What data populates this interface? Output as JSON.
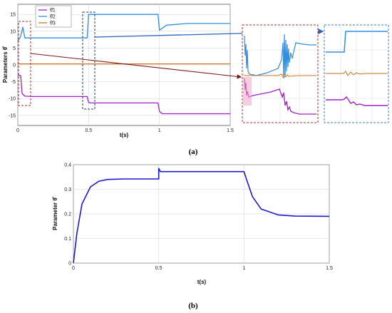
{
  "chart_data": [
    {
      "type": "line",
      "panel_caption": "(a)",
      "xlabel": "t(s)",
      "ylabel": "Parameters θ̂",
      "xlim": [
        0,
        1.5
      ],
      "ylim": [
        -18,
        18
      ],
      "xticks": [
        "0",
        "0.5",
        "1",
        "1.5"
      ],
      "yticks": [
        "-15",
        "-10",
        "-5",
        "0",
        "5",
        "10",
        "15"
      ],
      "grid": true,
      "legend_position": "top-left",
      "series": [
        {
          "name": "θ̂1",
          "color": "#a020c8",
          "x": [
            0,
            0.02,
            0.03,
            0.05,
            0.1,
            0.49,
            0.5,
            0.52,
            0.99,
            1.0,
            1.02,
            1.5
          ],
          "y": [
            -3,
            -3.2,
            -8.5,
            -9.3,
            -9.4,
            -9.4,
            -11.2,
            -11.3,
            -11.3,
            -13.8,
            -14.5,
            -14.5
          ]
        },
        {
          "name": "θ̂2",
          "color": "#2f8fe0",
          "x": [
            0,
            0.02,
            0.035,
            0.05,
            0.1,
            0.49,
            0.5,
            0.99,
            1.0,
            1.05,
            1.2,
            1.5
          ],
          "y": [
            7,
            8.5,
            11.2,
            8.0,
            8.0,
            8.0,
            15.0,
            15.0,
            10.3,
            11.8,
            12.3,
            12.3
          ]
        },
        {
          "name": "θ̂3",
          "color": "#d07a20",
          "x": [
            0,
            0.5,
            1.0,
            1.5
          ],
          "y": [
            0.3,
            0.3,
            0.3,
            0.3
          ]
        }
      ]
    },
    {
      "type": "line",
      "panel_caption": "(b)",
      "xlabel": "t(s)",
      "ylabel": "Parameter θ̂",
      "xlim": [
        0,
        1.5
      ],
      "ylim": [
        0,
        0.4
      ],
      "xticks": [
        "0",
        "0.5",
        "1",
        "1.5"
      ],
      "yticks": [
        "0",
        "0.1",
        "0.2",
        "0.3",
        "0.4"
      ],
      "grid": true,
      "series": [
        {
          "color": "#1a1ad4",
          "x": [
            0,
            0.02,
            0.05,
            0.1,
            0.15,
            0.2,
            0.3,
            0.5,
            0.5,
            0.51,
            0.6,
            1.0,
            1.02,
            1.05,
            1.1,
            1.2,
            1.3,
            1.5
          ],
          "y": [
            0,
            0.12,
            0.24,
            0.31,
            0.333,
            0.34,
            0.342,
            0.342,
            0.385,
            0.372,
            0.372,
            0.372,
            0.33,
            0.27,
            0.22,
            0.196,
            0.191,
            0.19
          ]
        }
      ]
    }
  ],
  "colors": {
    "grid": "#d0d0d0",
    "inset_red": "#b03030",
    "inset_blue": "#3b7bd4",
    "arrow": "#2a66b8",
    "arrow_dark": "#7a1a1a"
  }
}
